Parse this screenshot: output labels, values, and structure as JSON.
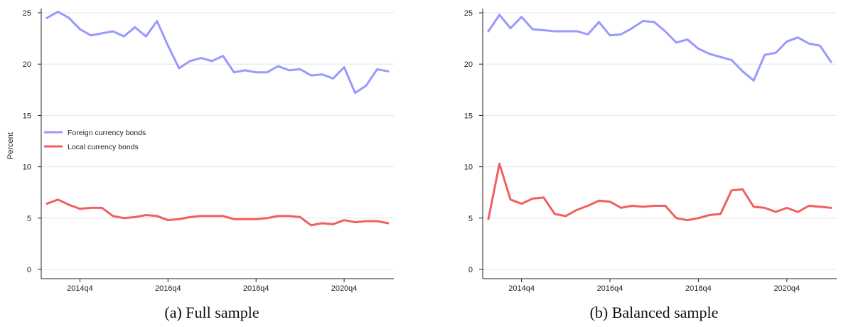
{
  "chart_data": [
    {
      "type": "line",
      "caption": "(a) Full sample",
      "ylabel": "Percent",
      "ylim": [
        0,
        25
      ],
      "yticks": [
        0,
        5,
        10,
        15,
        20,
        25
      ],
      "xticks": [
        {
          "label": "2014q4",
          "index": 3
        },
        {
          "label": "2016q4",
          "index": 11
        },
        {
          "label": "2018q4",
          "index": 19
        },
        {
          "label": "2020q4",
          "index": 27
        }
      ],
      "n_points": 32,
      "grid": true,
      "legend_position": "middle-left",
      "series": [
        {
          "name": "Foreign currency bonds",
          "color": "#9999ff",
          "values": [
            24.5,
            25.1,
            24.5,
            23.4,
            22.8,
            23.0,
            23.2,
            22.7,
            23.6,
            22.7,
            24.2,
            21.8,
            19.6,
            20.3,
            20.6,
            20.3,
            20.8,
            19.2,
            19.4,
            19.2,
            19.2,
            19.8,
            19.4,
            19.5,
            18.9,
            19.0,
            18.6,
            19.7,
            17.2,
            17.9,
            19.5,
            19.3
          ]
        },
        {
          "name": "Local currency bonds",
          "color": "#f06060",
          "values": [
            6.4,
            6.8,
            6.3,
            5.9,
            6.0,
            6.0,
            5.2,
            5.0,
            5.1,
            5.3,
            5.2,
            4.8,
            4.9,
            5.1,
            5.2,
            5.2,
            5.2,
            4.9,
            4.9,
            4.9,
            5.0,
            5.2,
            5.2,
            5.1,
            4.3,
            4.5,
            4.4,
            4.8,
            4.6,
            4.7,
            4.7,
            4.5
          ]
        }
      ]
    },
    {
      "type": "line",
      "caption": "(b) Balanced sample",
      "ylabel": "",
      "ylim": [
        0,
        25
      ],
      "yticks": [
        0,
        5,
        10,
        15,
        20,
        25
      ],
      "xticks": [
        {
          "label": "2014q4",
          "index": 3
        },
        {
          "label": "2016q4",
          "index": 11
        },
        {
          "label": "2018q4",
          "index": 19
        },
        {
          "label": "2020q4",
          "index": 27
        }
      ],
      "n_points": 32,
      "grid": true,
      "series": [
        {
          "color": "#9999ff",
          "values": [
            23.2,
            24.8,
            23.5,
            24.6,
            23.4,
            23.3,
            23.2,
            23.2,
            23.2,
            22.9,
            24.1,
            22.8,
            22.9,
            23.5,
            24.2,
            24.1,
            23.2,
            22.1,
            22.4,
            21.5,
            21.0,
            20.7,
            20.4,
            19.3,
            18.4,
            20.9,
            21.1,
            22.2,
            22.6,
            22.0,
            21.8,
            20.2
          ]
        },
        {
          "color": "#f06060",
          "values": [
            4.9,
            10.3,
            6.8,
            6.4,
            6.9,
            7.0,
            5.4,
            5.2,
            5.8,
            6.2,
            6.7,
            6.6,
            6.0,
            6.2,
            6.1,
            6.2,
            6.2,
            5.0,
            4.8,
            5.0,
            5.3,
            5.4,
            7.7,
            7.8,
            6.1,
            6.0,
            5.6,
            6.0,
            5.6,
            6.2,
            6.1,
            6.0
          ]
        }
      ]
    }
  ]
}
